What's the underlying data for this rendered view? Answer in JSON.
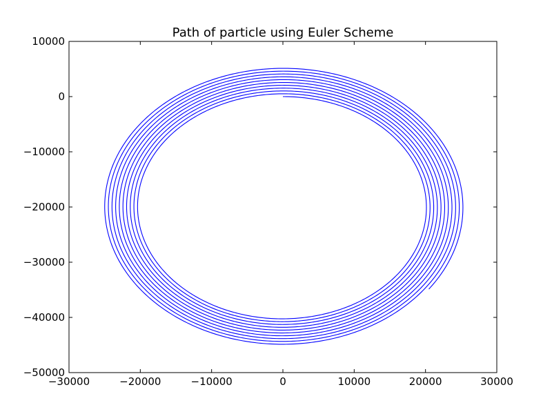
{
  "chart_data": {
    "type": "line",
    "title": "Path of particle using Euler Scheme",
    "xlabel": "",
    "ylabel": "",
    "xlim": [
      -30000,
      30000
    ],
    "ylim": [
      -50000,
      10000
    ],
    "xticks": [
      -30000,
      -20000,
      -10000,
      0,
      10000,
      20000,
      30000
    ],
    "yticks": [
      10000,
      0,
      -10000,
      -20000,
      -30000,
      -40000,
      -50000
    ],
    "xtick_labels": [
      "−30000",
      "−20000",
      "−10000",
      "0",
      "10000",
      "20000",
      "30000"
    ],
    "ytick_labels": [
      "10000",
      "0",
      "−10000",
      "−20000",
      "−30000",
      "−40000",
      "−50000"
    ],
    "grid": false,
    "series": [
      {
        "color": "#0000ff",
        "path": {
          "center": [
            0,
            -20000
          ],
          "start_radius_x": 20000,
          "start_radius_y": 20000,
          "end_radius_x": 25300,
          "end_radius_y": 25300,
          "start_point": [
            0,
            0
          ],
          "end_point": [
            -13000,
            2100
          ],
          "revolutions": 10.35,
          "direction": "clockwise"
        }
      }
    ]
  }
}
